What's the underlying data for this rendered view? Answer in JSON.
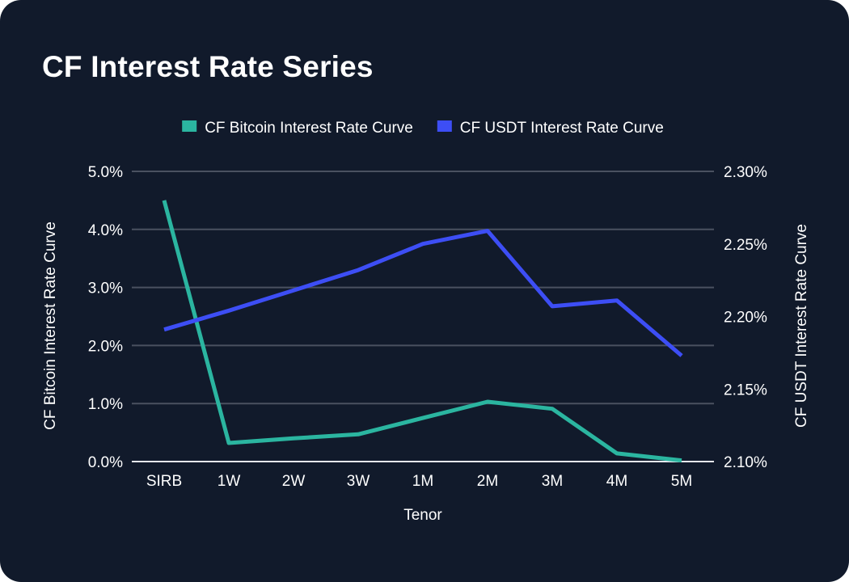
{
  "title": "CF Interest Rate Series",
  "colors": {
    "background": "#111a2b",
    "series1": "#2bb5a0",
    "series2": "#3d4ef5",
    "grid": "#4a5160",
    "text": "#ffffff"
  },
  "chart_data": {
    "type": "line",
    "title": "CF Interest Rate Series",
    "xlabel": "Tenor",
    "categories": [
      "SIRB",
      "1W",
      "2W",
      "3W",
      "1M",
      "2M",
      "3M",
      "4M",
      "5M"
    ],
    "y_left": {
      "label": "CF Bitcoin Interest Rate Curve",
      "ylim": [
        0,
        5
      ],
      "ticks": [
        0,
        1,
        2,
        3,
        4,
        5
      ],
      "tick_labels": [
        "0.0%",
        "1.0%",
        "2.0%",
        "3.0%",
        "4.0%",
        "5.0%"
      ]
    },
    "y_right": {
      "label": "CF USDT Interest Rate Curve",
      "ylim": [
        2.1,
        2.3
      ],
      "ticks": [
        2.1,
        2.15,
        2.2,
        2.25,
        2.3
      ],
      "tick_labels": [
        "2.10%",
        "2.15%",
        "2.20%",
        "2.25%",
        "2.30%"
      ]
    },
    "series": [
      {
        "name": "CF Bitcoin Interest Rate Curve",
        "axis": "left",
        "color": "#2bb5a0",
        "values": [
          4.5,
          0.32,
          0.4,
          0.47,
          0.75,
          1.03,
          0.91,
          0.14,
          0.02
        ]
      },
      {
        "name": "CF USDT Interest Rate Curve",
        "axis": "right",
        "color": "#3d4ef5",
        "values": [
          2.191,
          2.204,
          2.218,
          2.232,
          2.25,
          2.259,
          2.207,
          2.211,
          2.173
        ]
      }
    ],
    "legend": "top-center",
    "grid": true
  }
}
